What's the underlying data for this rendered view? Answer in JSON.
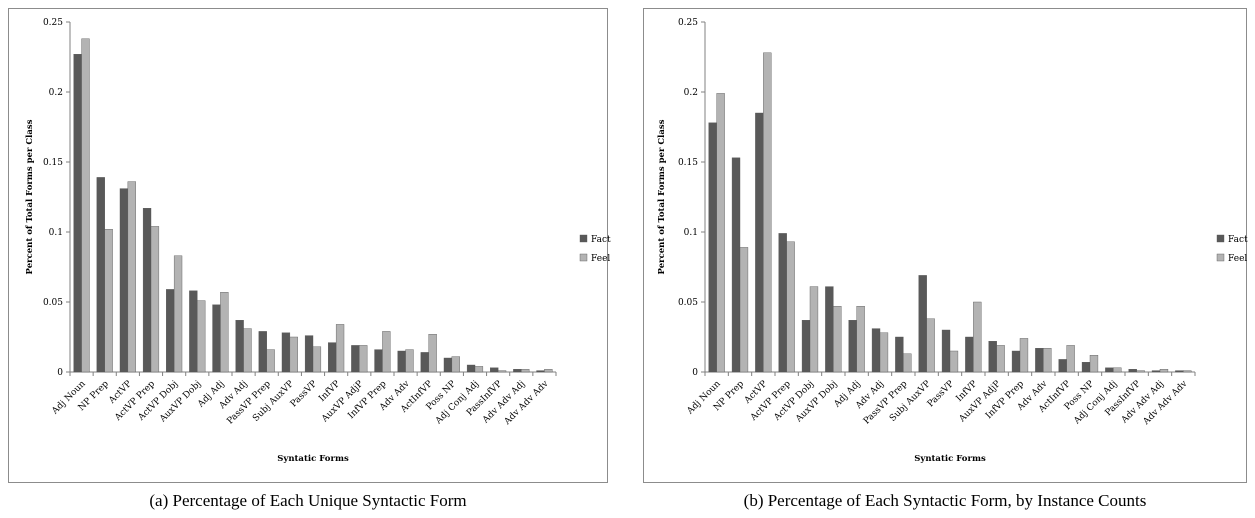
{
  "colors": {
    "fact": "#595959",
    "feel": "#b3b3b3",
    "frame": "#8c8c8c"
  },
  "captions": {
    "a": "(a) Percentage of Each Unique Syntactic Form",
    "b": "(b) Percentage of Each Syntactic Form, by Instance Counts"
  },
  "chart_data": [
    {
      "type": "bar",
      "xlabel": "Syntatic Forms",
      "ylabel": "Percent of Total Forms per Class",
      "ylim": [
        0,
        0.25
      ],
      "yticks": [
        "0",
        "0.05",
        "0.1",
        "0.15",
        "0.2",
        "0.25"
      ],
      "grid": false,
      "legend_position": "right",
      "categories": [
        "Adj Noun",
        "NP Prep",
        "ActVP",
        "ActVP Prep",
        "ActVP Dobj",
        "AuxVP Dobj",
        "Adj Adj",
        "Adv Adj",
        "PassVP Prep",
        "Subj AuxVP",
        "PassVP",
        "InfVP",
        "AuxVP AdjP",
        "InfVP Prep",
        "Adv Adv",
        "ActInfVP",
        "Poss NP",
        "Adj Conj Adj",
        "PassInfVP",
        "Adv Adv Adj",
        "Adv Adv Adv"
      ],
      "series": [
        {
          "name": "Fact",
          "values": [
            0.227,
            0.139,
            0.131,
            0.117,
            0.059,
            0.058,
            0.048,
            0.037,
            0.029,
            0.028,
            0.026,
            0.021,
            0.019,
            0.016,
            0.015,
            0.014,
            0.01,
            0.005,
            0.003,
            0.002,
            0.001
          ]
        },
        {
          "name": "Feel",
          "values": [
            0.238,
            0.102,
            0.136,
            0.104,
            0.083,
            0.051,
            0.057,
            0.031,
            0.016,
            0.025,
            0.018,
            0.034,
            0.019,
            0.029,
            0.016,
            0.027,
            0.011,
            0.004,
            0.001,
            0.002,
            0.002
          ]
        }
      ]
    },
    {
      "type": "bar",
      "xlabel": "Syntatic Forms",
      "ylabel": "Percent of Total Forms per Class",
      "ylim": [
        0,
        0.25
      ],
      "yticks": [
        "0",
        "0.05",
        "0.1",
        "0.15",
        "0.2",
        "0.25"
      ],
      "grid": false,
      "legend_position": "right",
      "categories": [
        "Adj Noun",
        "NP Prep",
        "ActVP",
        "ActVP Prep",
        "ActVP Dobj",
        "AuxVP Dobj",
        "Adj Adj",
        "Adv Adj",
        "PassVP Prep",
        "Subj AuxVP",
        "PassVP",
        "InfVP",
        "AuxVP AdjP",
        "InfVP Prep",
        "Adv Adv",
        "ActInfVP",
        "Poss NP",
        "Adj Conj Adj",
        "PassInfVP",
        "Adv Adv Adj",
        "Adv Adv Adv"
      ],
      "series": [
        {
          "name": "Fact",
          "values": [
            0.178,
            0.153,
            0.185,
            0.099,
            0.037,
            0.061,
            0.037,
            0.031,
            0.025,
            0.069,
            0.03,
            0.025,
            0.022,
            0.015,
            0.017,
            0.009,
            0.007,
            0.003,
            0.002,
            0.001,
            0.001
          ]
        },
        {
          "name": "Feel",
          "values": [
            0.199,
            0.089,
            0.228,
            0.093,
            0.061,
            0.047,
            0.047,
            0.028,
            0.013,
            0.038,
            0.015,
            0.05,
            0.019,
            0.024,
            0.017,
            0.019,
            0.012,
            0.003,
            0.001,
            0.002,
            0.001
          ]
        }
      ]
    }
  ]
}
